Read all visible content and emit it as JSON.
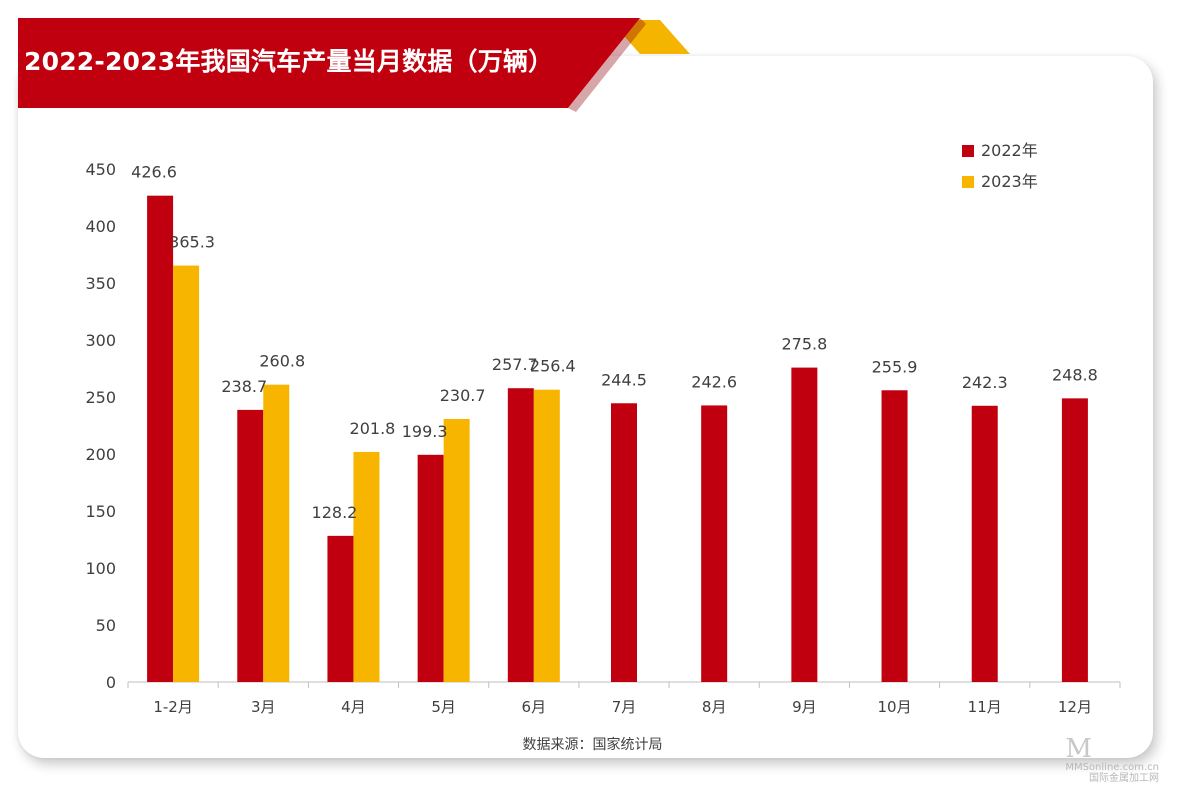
{
  "title": "2022-2023年我国汽车产量当月数据（万辆）",
  "source": "数据来源：国家统计局",
  "watermark": {
    "mark": "M",
    "line1": "MMSonline.com.cn",
    "line2": "国际金属加工网"
  },
  "colors": {
    "banner": "#C1000F",
    "banner_accent": "#F5B400",
    "series_2022": "#C0000E",
    "series_2023": "#F7B500",
    "axis": "#BFBFBF",
    "text": "#404040"
  },
  "chart_data": {
    "type": "bar",
    "categories": [
      "1-2月",
      "3月",
      "4月",
      "5月",
      "6月",
      "7月",
      "8月",
      "9月",
      "10月",
      "11月",
      "12月"
    ],
    "series": [
      {
        "name": "2022年",
        "values": [
          426.6,
          238.7,
          128.2,
          199.3,
          257.7,
          244.5,
          242.6,
          275.8,
          255.9,
          242.3,
          248.8
        ]
      },
      {
        "name": "2023年",
        "values": [
          365.3,
          260.8,
          201.8,
          230.7,
          256.4,
          null,
          null,
          null,
          null,
          null,
          null
        ]
      }
    ],
    "ylim": [
      0,
      450
    ],
    "yticks": [
      0,
      50,
      100,
      150,
      200,
      250,
      300,
      350,
      400,
      450
    ],
    "legend": "top-right",
    "grid": false,
    "data_labels": true
  }
}
